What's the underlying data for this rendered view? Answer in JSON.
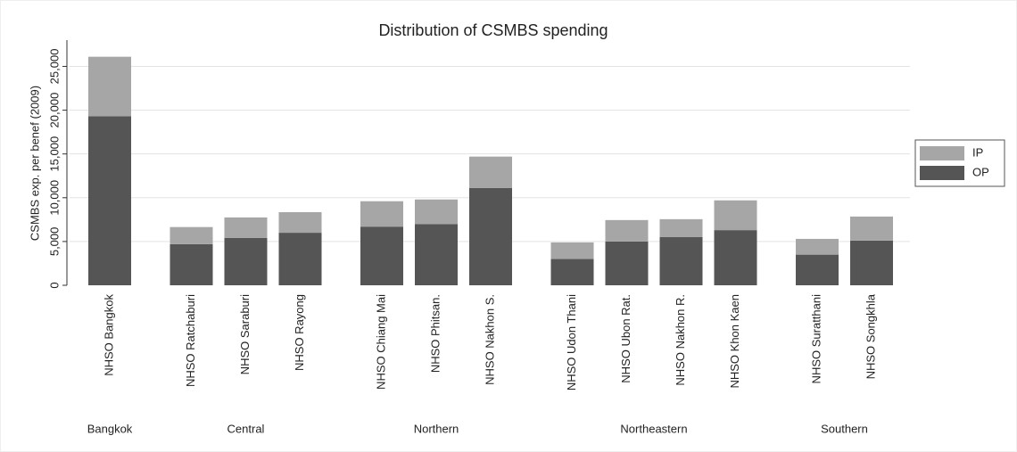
{
  "chart_data": {
    "type": "stacked-bar",
    "title": "Distribution of CSMBS spending",
    "y_label": "CSMBS exp. per benef (2009)",
    "groups": [
      {
        "label": "Bangkok",
        "categories": [
          "NHSO Bangkok"
        ]
      },
      {
        "label": "Central",
        "categories": [
          "NHSO Ratchaburi",
          "NHSO Saraburi",
          "NHSO Rayong"
        ]
      },
      {
        "label": "Northern",
        "categories": [
          "NHSO Chiang Mai",
          "NHSO Phitsan.",
          "NHSO Nakhon S."
        ]
      },
      {
        "label": "Northeastern",
        "categories": [
          "NHSO Udon Thani",
          "NHSO Ubon Rat.",
          "NHSO Nakhon R.",
          "NHSO Khon Kaen"
        ]
      },
      {
        "label": "Southern",
        "categories": [
          "NHSO Suratthani",
          "NHSO Songkhla"
        ]
      }
    ],
    "series": [
      {
        "name": "OP",
        "color": "#555555",
        "values": [
          19300,
          4700,
          5400,
          6000,
          6700,
          7000,
          11100,
          3000,
          5000,
          5500,
          6300,
          3500,
          5100
        ]
      },
      {
        "name": "IP",
        "color": "#a6a6a6",
        "values": [
          6800,
          1950,
          2350,
          2350,
          2900,
          2800,
          3600,
          1900,
          2450,
          2050,
          3400,
          1800,
          2750
        ]
      }
    ],
    "ylim": [
      0,
      28000
    ],
    "yticks": [
      0,
      {
        "value": 5000,
        "label": "5,000"
      },
      {
        "value": 10000,
        "label": "10,000"
      },
      {
        "value": 15000,
        "label": "15,000"
      },
      {
        "value": 20000,
        "label": "20,000"
      },
      {
        "value": 25000,
        "label": "25,000"
      }
    ],
    "grid": true,
    "legend": "right"
  }
}
